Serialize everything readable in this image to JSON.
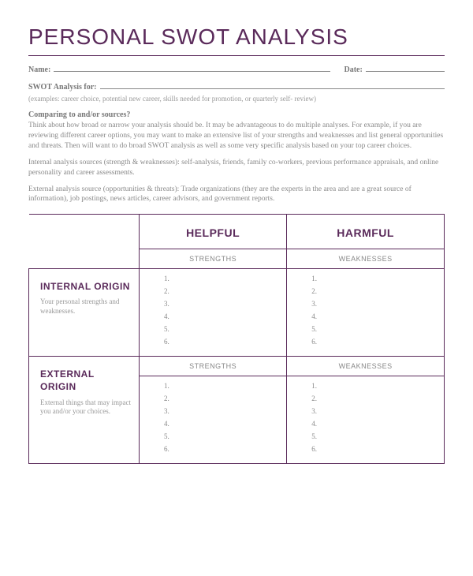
{
  "title": "PERSONAL SWOT ANALYSIS",
  "fields": {
    "name_label": "Name:",
    "date_label": "Date:",
    "swot_for_label": "SWOT Analysis for:",
    "examples": "(examples: career choice, potential new career, skills needed for promotion, or quarterly self- review)"
  },
  "comparing": {
    "heading": "Comparing to and/or sources?",
    "p1": "Think about how broad or narrow your analysis should be.  It may be advantageous to do multiple analyses. For example, if you are reviewing different career options, you may want to make an extensive list of your strengths and weaknesses and list general opportunities and threats. Then will want to do broad SWOT analysis as well as some very specific analysis based on your top career choices.",
    "p2": "Internal analysis sources (strength & weaknesses):  self-analysis, friends, family co-workers, previous performance appraisals, and online personality and career assessments.",
    "p3": "External analysis source (opportunities & threats): Trade organizations (they are the experts in the area and are a great source of information), job postings, news articles, career advisors, and government reports."
  },
  "table": {
    "col_helpful": "HELPFUL",
    "col_harmful": "HARMFUL",
    "sub_strengths": "STRENGTHS",
    "sub_weaknesses": "WEAKNESSES",
    "internal": {
      "title": "INTERNAL ORIGIN",
      "desc": "Your personal strengths and weaknesses."
    },
    "external": {
      "title": "EXTERNAL ORIGIN",
      "desc": "External things that may impact you and/or your choices."
    },
    "list_count": 6
  },
  "style": {
    "accent_color": "#5a2a5a",
    "text_color": "#888888",
    "bg_color": "#ffffff"
  }
}
